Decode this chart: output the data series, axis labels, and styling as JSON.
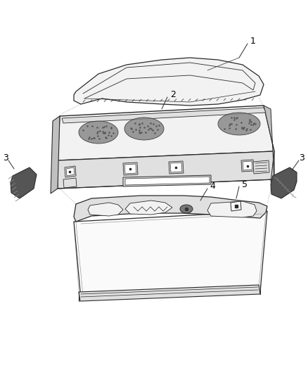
{
  "background_color": "#ffffff",
  "line_color": "#2a2a2a",
  "fill_light": "#f2f2f2",
  "fill_mid": "#e0e0e0",
  "fill_dark": "#c0c0c0",
  "fill_darker": "#555555",
  "label_color": "#000000",
  "fig_width": 4.38,
  "fig_height": 5.33,
  "dpi": 100
}
